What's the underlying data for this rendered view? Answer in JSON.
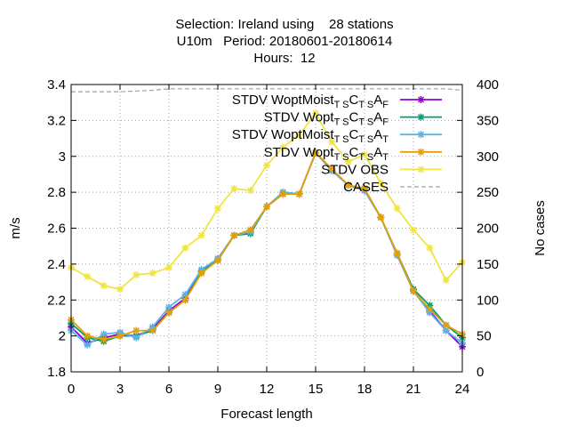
{
  "chart_data": {
    "type": "line",
    "title_lines": [
      "Selection: Ireland using    28 stations",
      "U10m   Period: 20180601-20180614",
      "Hours:  12"
    ],
    "xlabel": "Forecast length",
    "ylabel": "m/s",
    "y2label": "No cases",
    "xlim": [
      0,
      24
    ],
    "ylim": [
      1.8,
      3.4
    ],
    "y2lim": [
      0,
      400
    ],
    "xticks": [
      "0",
      "3",
      "6",
      "9",
      "12",
      "15",
      "18",
      "21",
      "24"
    ],
    "yticks": [
      "1.8",
      "2",
      "2.2",
      "2.4",
      "2.6",
      "2.8",
      "3",
      "3.2",
      "3.4"
    ],
    "y2ticks": [
      "0",
      "50",
      "100",
      "150",
      "200",
      "250",
      "300",
      "350",
      "400"
    ],
    "grid": true,
    "legend_position": "top-right",
    "x": [
      0,
      1,
      2,
      3,
      4,
      5,
      6,
      7,
      8,
      9,
      10,
      11,
      12,
      13,
      14,
      15,
      16,
      17,
      18,
      19,
      20,
      21,
      22,
      23,
      24
    ],
    "series": [
      {
        "legend": {
          "main": "STDV WoptMoist",
          "s1": "T S",
          "c": "C",
          "s2": "T S",
          "a": "A",
          "s3": "F"
        },
        "color": "#9400d3",
        "marker": "x-star",
        "axis": "y",
        "values": [
          2.05,
          1.96,
          1.99,
          2.01,
          2.0,
          2.04,
          2.14,
          2.21,
          2.36,
          2.43,
          2.56,
          2.58,
          2.72,
          2.79,
          2.79,
          3.02,
          2.92,
          2.84,
          2.81,
          2.66,
          2.45,
          2.25,
          2.14,
          2.03,
          1.94
        ]
      },
      {
        "legend": {
          "main": "STDV Wopt",
          "s1": "T S",
          "c": "C",
          "s2": "T S",
          "a": "A",
          "s3": "F"
        },
        "color": "#009e73",
        "marker": "x-star",
        "axis": "y",
        "values": [
          2.07,
          1.99,
          1.97,
          2.0,
          2.0,
          2.03,
          2.13,
          2.2,
          2.36,
          2.42,
          2.56,
          2.57,
          2.72,
          2.8,
          2.79,
          3.02,
          2.93,
          2.84,
          2.82,
          2.66,
          2.46,
          2.26,
          2.17,
          2.06,
          1.99
        ]
      },
      {
        "legend": {
          "main": "STDV WoptMoist",
          "s1": "T S",
          "c": "C",
          "s2": "T S",
          "a": "A",
          "s3": "T"
        },
        "color": "#56b4e9",
        "marker": "x-star",
        "axis": "y",
        "values": [
          2.03,
          1.95,
          2.01,
          2.02,
          1.99,
          2.05,
          2.16,
          2.23,
          2.37,
          2.43,
          2.56,
          2.58,
          2.72,
          2.8,
          2.79,
          3.02,
          2.92,
          2.84,
          2.81,
          2.66,
          2.45,
          2.25,
          2.13,
          2.03,
          1.96
        ]
      },
      {
        "legend": {
          "main": "STDV Wopt",
          "s1": "T S",
          "c": "C",
          "s2": "T S",
          "a": "A",
          "s3": "T"
        },
        "color": "#e69f00",
        "marker": "x-star",
        "axis": "y",
        "values": [
          2.09,
          2.0,
          1.98,
          2.0,
          2.03,
          2.03,
          2.13,
          2.2,
          2.35,
          2.42,
          2.56,
          2.59,
          2.72,
          2.79,
          2.79,
          3.02,
          2.93,
          2.84,
          2.82,
          2.66,
          2.46,
          2.25,
          2.15,
          2.06,
          2.01
        ]
      },
      {
        "legend": {
          "main": "STDV OBS"
        },
        "color": "#f0e442",
        "marker": "x-star",
        "axis": "y",
        "values": [
          2.38,
          2.33,
          2.28,
          2.26,
          2.34,
          2.35,
          2.38,
          2.49,
          2.56,
          2.71,
          2.82,
          2.81,
          2.95,
          3.05,
          3.12,
          3.24,
          3.08,
          2.97,
          3.01,
          2.85,
          2.71,
          2.59,
          2.49,
          2.31,
          2.41
        ]
      },
      {
        "legend": {
          "main": "CASES"
        },
        "color": "#a0a0a0",
        "marker": "none",
        "dash": true,
        "axis": "y2",
        "values": [
          390,
          390,
          390,
          390,
          391,
          392,
          394,
          394,
          394,
          394,
          394,
          394,
          394,
          394,
          394,
          394,
          394,
          394,
          394,
          394,
          394,
          394,
          394,
          394,
          392
        ]
      }
    ]
  }
}
